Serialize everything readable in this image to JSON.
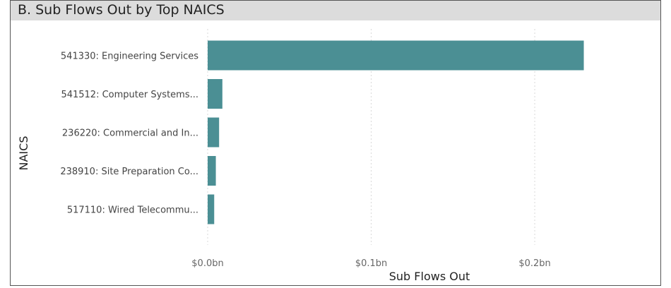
{
  "visual": {
    "title": "B. Sub Flows Out by Top NAICS",
    "bar_color": "#4b8f94",
    "title_bar_color": "#dcdcdc"
  },
  "chart_data": {
    "type": "bar",
    "orientation": "horizontal",
    "categories": [
      "541330: Engineering Services",
      "541512: Computer Systems...",
      "236220: Commercial and In...",
      "238910: Site Preparation Co...",
      "517110: Wired Telecommu..."
    ],
    "values": [
      0.23,
      0.009,
      0.007,
      0.005,
      0.004
    ],
    "value_unit": "bn",
    "xlabel": "Sub Flows Out",
    "ylabel": "NAICS",
    "xlim": [
      0,
      0.2505
    ],
    "x_ticks": [
      0.0,
      0.1,
      0.2
    ],
    "x_tick_labels": [
      "$0.0bn",
      "$0.1bn",
      "$0.2bn"
    ],
    "grid": "vertical dotted",
    "legend": "none"
  }
}
